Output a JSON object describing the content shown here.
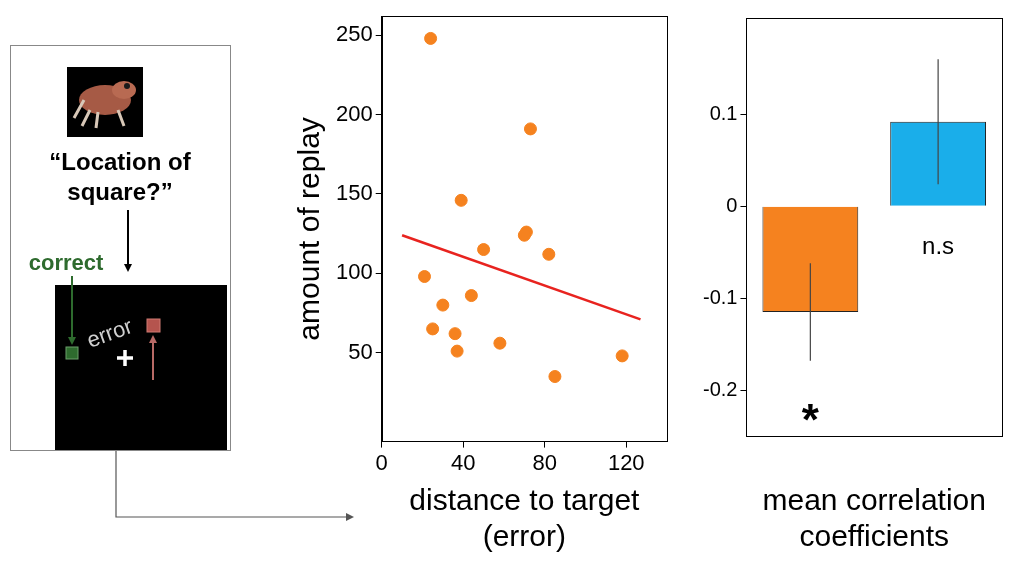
{
  "chart_data": [
    {
      "type": "scatter",
      "x_label": "distance to target (error)",
      "y_label": "amount of replay",
      "x": [
        24,
        73,
        39,
        71,
        70,
        50,
        82,
        21,
        44,
        30,
        25,
        36,
        58,
        37,
        118,
        85
      ],
      "values": [
        248,
        191,
        146,
        126,
        124,
        115,
        112,
        98,
        86,
        80,
        65,
        62,
        56,
        51,
        48,
        35
      ],
      "color": "#f5821f",
      "marker": "circle",
      "fit": {
        "x": [
          10,
          127
        ],
        "values": [
          124,
          71
        ],
        "color": "#e8231f",
        "line_style": "solid"
      },
      "xlim": [
        0,
        140
      ],
      "xticks": [
        0,
        40,
        80,
        120
      ],
      "ylim": [
        -6,
        262
      ],
      "yticks": [
        50,
        100,
        150,
        200,
        250
      ],
      "grid": false
    },
    {
      "type": "bar",
      "x_label": "mean correlation coefficients",
      "categories": [
        null,
        null
      ],
      "values": [
        -0.115,
        0.092
      ],
      "errors": [
        0.053,
        0.068
      ],
      "colors": [
        "#f5821f",
        "#1aaeea"
      ],
      "ylim": [
        -0.25,
        0.205
      ],
      "yticks": [
        -0.2,
        -0.1,
        0,
        0.1
      ],
      "grid": false,
      "tick_labels": "y",
      "annotations": [
        {
          "text": "*",
          "category": 0,
          "y": -0.225
        },
        {
          "text": "n.s",
          "category": 1,
          "y": -0.045
        }
      ]
    }
  ],
  "diagram": {
    "question": "“Location of square?”",
    "correct": "correct",
    "error": "error"
  }
}
